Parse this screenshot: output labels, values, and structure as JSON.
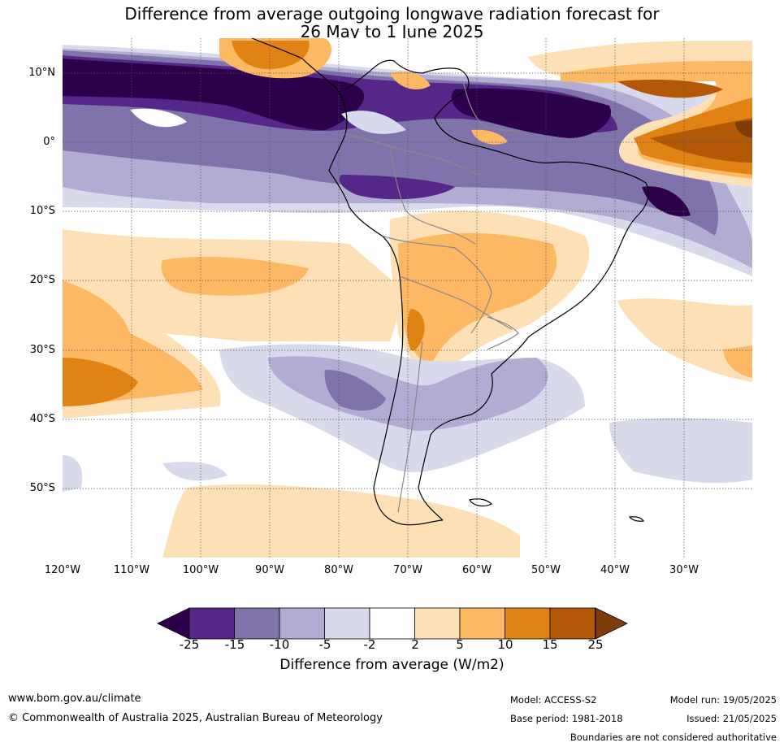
{
  "title_line1": "Difference from average outgoing longwave radiation forecast for",
  "title_line2": "26 May to 1 June 2025",
  "lat_labels": [
    "10°N",
    "0°",
    "10°S",
    "20°S",
    "30°S",
    "40°S",
    "50°S"
  ],
  "lon_labels": [
    "120°W",
    "110°W",
    "100°W",
    "90°W",
    "80°W",
    "70°W",
    "60°W",
    "50°W",
    "40°W",
    "30°W"
  ],
  "colorbar": {
    "ticks": [
      "-25",
      "-15",
      "-10",
      "-5",
      "-2",
      "2",
      "5",
      "10",
      "15",
      "25"
    ],
    "colors": [
      "#2d004b",
      "#542788",
      "#8073ac",
      "#b2abd2",
      "#d8daeb",
      "#ffffff",
      "#fee0b6",
      "#fdb863",
      "#e08214",
      "#b35806",
      "#7f3b08"
    ],
    "label": "Difference from average (W/m2)"
  },
  "footer": {
    "url": "www.bom.gov.au/climate",
    "copyright": "© Commonwealth of Australia 2025, Australian Bureau of Meteorology",
    "model": "Model: ACCESS-S2",
    "base_period": "Base period: 1981-2018",
    "model_run": "Model run: 19/05/2025",
    "issued": "Issued: 21/05/2025",
    "disclaimer": "Boundaries are not considered authoritative"
  }
}
